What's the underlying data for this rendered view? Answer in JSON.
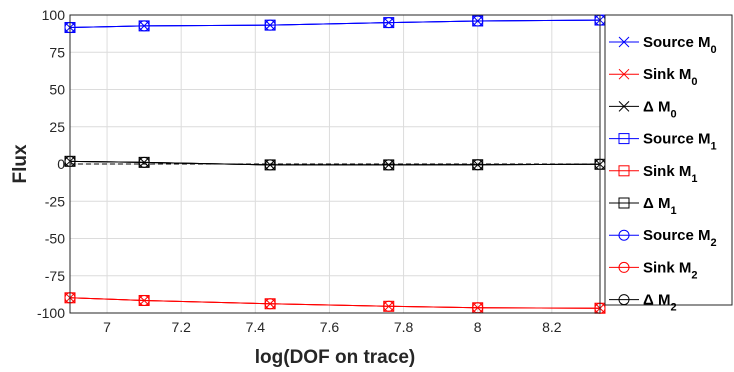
{
  "chart_data": {
    "type": "line",
    "xlabel": "log(DOF on trace)",
    "ylabel": "Flux",
    "xlim": [
      6.9,
      8.33
    ],
    "ylim": [
      -100,
      100
    ],
    "xticks": [
      "7",
      "7.2",
      "7.4",
      "7.6",
      "7.8",
      "8",
      "8.2"
    ],
    "yticks": [
      "100",
      "75",
      "50",
      "25",
      "0",
      "-25",
      "-50",
      "-75",
      "-100"
    ],
    "x": [
      6.9,
      7.1,
      7.44,
      7.76,
      8.0,
      8.33
    ],
    "reference_lines": [
      100,
      0,
      -100
    ],
    "grid": true,
    "legend_position": "outside-right",
    "series": [
      {
        "name": "Source M",
        "sub": "0",
        "color": "#0000ff",
        "marker": "x",
        "values": [
          91.6,
          92.7,
          93.2,
          94.9,
          96.0,
          96.6
        ]
      },
      {
        "name": "Sink M",
        "sub": "0",
        "color": "#ff0000",
        "marker": "x",
        "values": [
          -89.8,
          -91.6,
          -93.8,
          -95.5,
          -96.5,
          -96.8
        ]
      },
      {
        "name": "Δ M",
        "sub": "0",
        "color": "#000000",
        "marker": "x",
        "values": [
          1.8,
          1.1,
          -0.6,
          -0.6,
          -0.5,
          -0.2
        ]
      },
      {
        "name": "Source M",
        "sub": "1",
        "color": "#0000ff",
        "marker": "square",
        "values": [
          91.6,
          92.7,
          93.2,
          94.9,
          96.0,
          96.6
        ]
      },
      {
        "name": "Sink M",
        "sub": "1",
        "color": "#ff0000",
        "marker": "square",
        "values": [
          -89.8,
          -91.6,
          -93.8,
          -95.5,
          -96.5,
          -96.8
        ]
      },
      {
        "name": "Δ M",
        "sub": "1",
        "color": "#000000",
        "marker": "square",
        "values": [
          1.8,
          1.1,
          -0.6,
          -0.6,
          -0.5,
          -0.2
        ]
      },
      {
        "name": "Source M",
        "sub": "2",
        "color": "#0000ff",
        "marker": "circle",
        "values": [
          91.6,
          92.7,
          93.2,
          94.9,
          96.0,
          96.6
        ]
      },
      {
        "name": "Sink M",
        "sub": "2",
        "color": "#ff0000",
        "marker": "circle",
        "values": [
          -89.8,
          -91.6,
          -93.8,
          -95.5,
          -96.5,
          -96.8
        ]
      },
      {
        "name": "Δ M",
        "sub": "2",
        "color": "#000000",
        "marker": "circle",
        "values": [
          1.8,
          1.1,
          -0.6,
          -0.6,
          -0.5,
          -0.2
        ]
      }
    ]
  }
}
